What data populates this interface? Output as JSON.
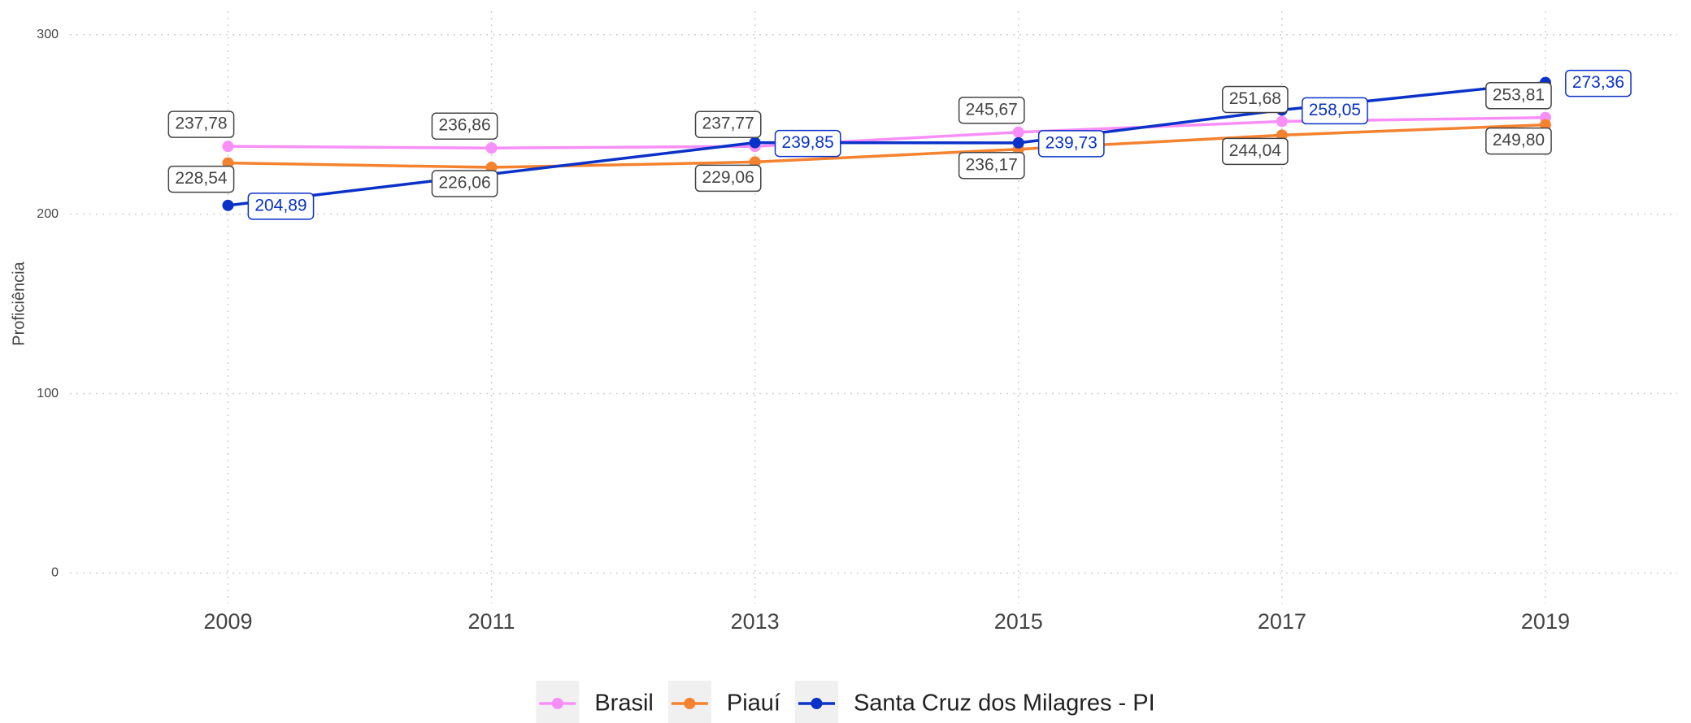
{
  "chart_data": {
    "type": "line",
    "y_label": "Proficiência",
    "xlim": [
      2007.8,
      2020
    ],
    "xticks": [
      2009,
      2011,
      2013,
      2015,
      2017,
      2019
    ],
    "ylim": [
      -17,
      313
    ],
    "yticks": [
      0,
      100,
      200,
      300
    ],
    "grid": true,
    "legend": "bottom",
    "series": [
      {
        "name": "Brasil",
        "color": "#f88ff8",
        "x": [
          2009,
          2011,
          2013,
          2015,
          2017,
          2019
        ],
        "values": [
          237.78,
          236.86,
          237.77,
          245.67,
          251.68,
          253.81
        ],
        "value_labels": [
          "237,78",
          "236,86",
          "237,77",
          "245,67",
          "251,68",
          "253,81"
        ]
      },
      {
        "name": "Piauí",
        "color": "#f5822f",
        "x": [
          2009,
          2011,
          2013,
          2015,
          2017,
          2019
        ],
        "values": [
          228.54,
          226.06,
          229.06,
          236.17,
          244.04,
          249.8
        ],
        "value_labels": [
          "228,54",
          "226,06",
          "229,06",
          "236,17",
          "244,04",
          "249,80"
        ]
      },
      {
        "name": "Santa Cruz dos Milagres - PI",
        "color": "#0a32c8",
        "x": [
          2009,
          2013,
          2015,
          2017,
          2019
        ],
        "values": [
          204.89,
          239.85,
          239.73,
          258.05,
          273.36
        ],
        "value_labels": [
          "204,89",
          "239,85",
          "239,73",
          "258,05",
          "273,36"
        ]
      }
    ]
  }
}
